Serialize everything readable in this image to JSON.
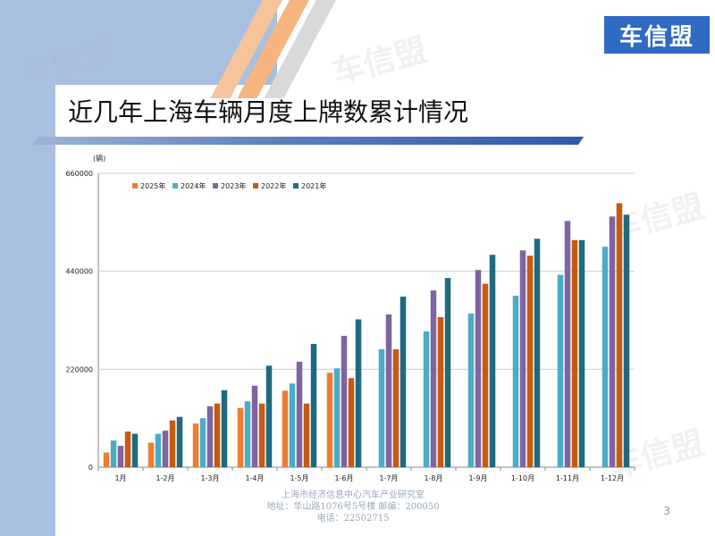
{
  "brand": {
    "logo_text": "车信盟",
    "watermark_text": "车信盟"
  },
  "slide": {
    "title": "近几年上海车辆月度上牌数累计情况",
    "page_number": "3"
  },
  "footer": {
    "line1": "上海市经济信息中心汽车产业研究室",
    "line2": "地址：华山路1076号5号楼    邮编：200050",
    "line3": "电话：22502715"
  },
  "chart_data": {
    "type": "bar",
    "unit_label": "(辆)",
    "ylim": [
      0,
      660000
    ],
    "yticks": [
      0,
      220000,
      440000,
      660000
    ],
    "grid": true,
    "legend_position": "top-left",
    "categories": [
      "1月",
      "1-2月",
      "1-3月",
      "1-4月",
      "1-5月",
      "1-6月",
      "1-7月",
      "1-8月",
      "1-9月",
      "1-10月",
      "1-11月",
      "1-12月"
    ],
    "series": [
      {
        "name": "2025年",
        "color": "#ed7d31",
        "values": [
          33000,
          55000,
          98000,
          133000,
          172000,
          212000,
          null,
          null,
          null,
          null,
          null,
          null
        ]
      },
      {
        "name": "2024年",
        "color": "#4bacc6",
        "values": [
          60000,
          75000,
          110000,
          148000,
          188000,
          222000,
          265000,
          305000,
          345000,
          385000,
          432000,
          495000
        ]
      },
      {
        "name": "2023年",
        "color": "#8064a2",
        "values": [
          48000,
          82000,
          137000,
          183000,
          237000,
          295000,
          343000,
          397000,
          443000,
          487000,
          553000,
          563000
        ]
      },
      {
        "name": "2022年",
        "color": "#c55a11",
        "values": [
          80000,
          105000,
          143000,
          143000,
          143000,
          200000,
          265000,
          337000,
          412000,
          475000,
          510000,
          593000
        ]
      },
      {
        "name": "2021年",
        "color": "#1f6a80",
        "values": [
          75000,
          113000,
          173000,
          228000,
          277000,
          332000,
          383000,
          425000,
          477000,
          513000,
          510000,
          567000
        ]
      }
    ]
  }
}
